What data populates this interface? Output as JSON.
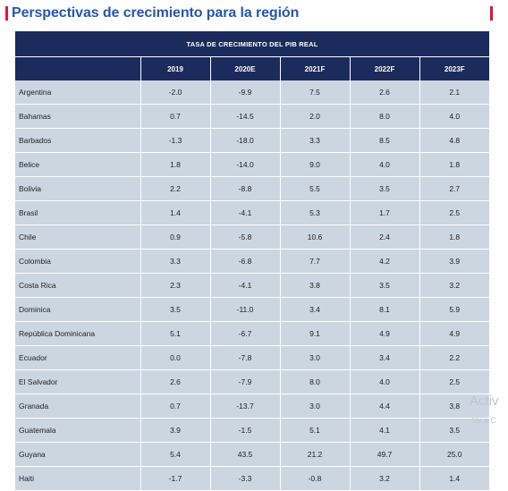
{
  "title": "Perspectivas de crecimiento para la región",
  "table": {
    "super_header": "TASA DE CRECIMIENTO DEL PIB REAL",
    "columns": [
      "",
      "2019",
      "2020E",
      "2021F",
      "2022F",
      "2023F"
    ],
    "rows": [
      [
        "Argentina",
        "-2.0",
        "-9.9",
        "7.5",
        "2.6",
        "2.1"
      ],
      [
        "Bahamas",
        "0.7",
        "-14.5",
        "2.0",
        "8.0",
        "4.0"
      ],
      [
        "Barbados",
        "-1.3",
        "-18.0",
        "3.3",
        "8.5",
        "4.8"
      ],
      [
        "Belice",
        "1.8",
        "-14.0",
        "9.0",
        "4.0",
        "1.8"
      ],
      [
        "Bolivia",
        "2.2",
        "-8.8",
        "5.5",
        "3.5",
        "2.7"
      ],
      [
        "Brasil",
        "1.4",
        "-4.1",
        "5.3",
        "1.7",
        "2.5"
      ],
      [
        "Chile",
        "0.9",
        "-5.8",
        "10.6",
        "2.4",
        "1.8"
      ],
      [
        "Colombia",
        "3.3",
        "-6.8",
        "7.7",
        "4.2",
        "3.9"
      ],
      [
        "Costa Rica",
        "2.3",
        "-4.1",
        "3.8",
        "3.5",
        "3.2"
      ],
      [
        "Dominica",
        "3.5",
        "-11.0",
        "3.4",
        "8.1",
        "5.9"
      ],
      [
        "República Dominicana",
        "5.1",
        "-6.7",
        "9.1",
        "4.9",
        "4.9"
      ],
      [
        "Ecuador",
        "0.0",
        "-7.8",
        "3.0",
        "3.4",
        "2.2"
      ],
      [
        "El Salvador",
        "2.6",
        "-7.9",
        "8.0",
        "4.0",
        "2.5"
      ],
      [
        "Granada",
        "0.7",
        "-13.7",
        "3.0",
        "4.4",
        "3.8"
      ],
      [
        "Guatemala",
        "3.9",
        "-1.5",
        "5.1",
        "4.1",
        "3.5"
      ],
      [
        "Guyana",
        "5.4",
        "43.5",
        "21.2",
        "49.7",
        "25.0"
      ],
      [
        "Haiti",
        "-1.7",
        "-3.3",
        "-0.8",
        "3.2",
        "1.4"
      ]
    ]
  },
  "watermark": {
    "line1": "Activ",
    "line2": "Ve a C"
  }
}
